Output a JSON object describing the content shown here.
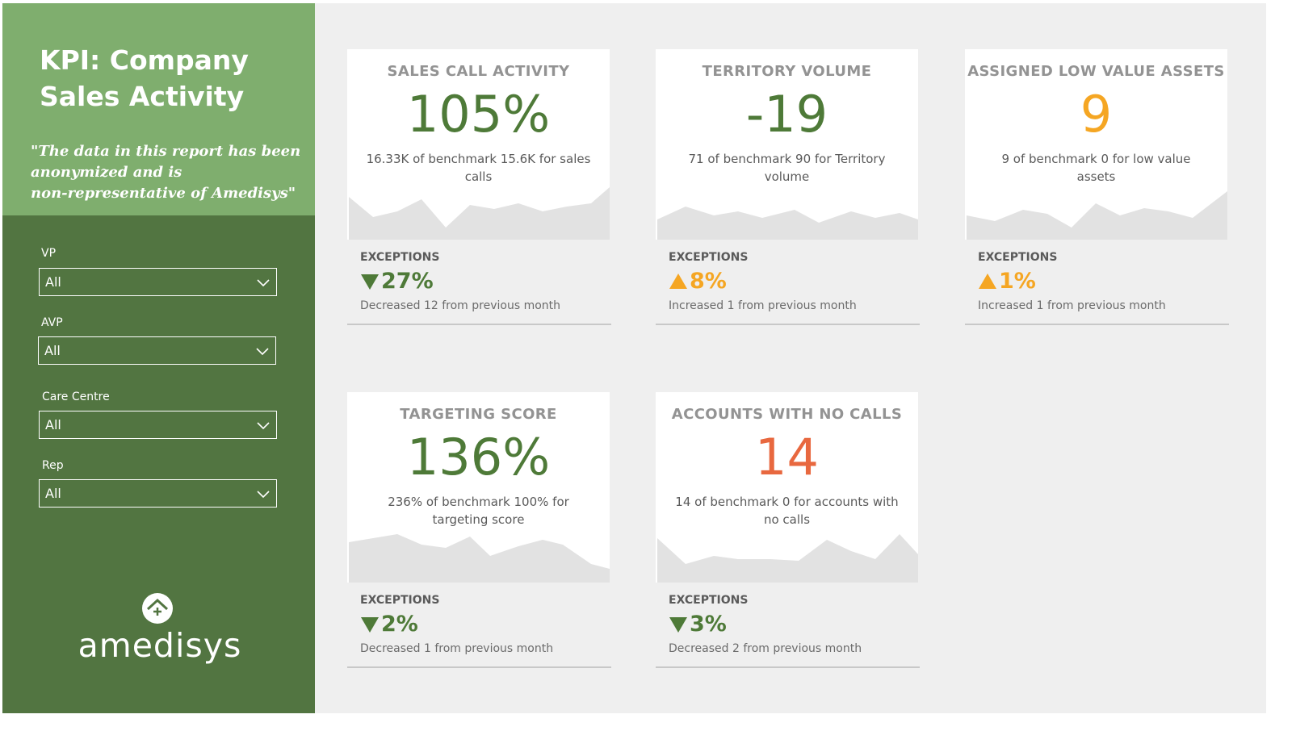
{
  "sidebar": {
    "title_line1": "KPI: Company",
    "title_line2": "Sales Activity",
    "quote_line1": "\"The data in this report has been",
    "quote_line2": "anonymized and is",
    "quote_line3": "non-representative of Amedisys\"",
    "filters": [
      {
        "label": "VP",
        "value": "All"
      },
      {
        "label": "AVP",
        "value": "All"
      },
      {
        "label": "Care Centre",
        "value": "All"
      },
      {
        "label": "Rep",
        "value": "All"
      }
    ],
    "logo_text": "amedisys"
  },
  "colors": {
    "green": "#4e7a38",
    "orange": "#f5a623",
    "red": "#e8683f",
    "sidebar_dark": "#527541",
    "sidebar_light": "#7fae6e"
  },
  "cards": [
    {
      "title": "SALES CALL ACTIVITY",
      "value": "105%",
      "value_color": "green",
      "desc": "16.33K of benchmark 15.6K for sales calls",
      "exceptions_label": "EXCEPTIONS",
      "exceptions_value": "27%",
      "exceptions_direction": "down",
      "exceptions_desc": "Decreased 12 from previous month"
    },
    {
      "title": "TERRITORY VOLUME",
      "value": "-19",
      "value_color": "green",
      "desc": "71 of benchmark 90 for Territory volume",
      "exceptions_label": "EXCEPTIONS",
      "exceptions_value": "8%",
      "exceptions_direction": "up",
      "exceptions_desc": "Increased 1 from previous month"
    },
    {
      "title": "ASSIGNED LOW VALUE ASSETS",
      "value": "9",
      "value_color": "orange",
      "desc": "9 of benchmark 0 for low value assets",
      "exceptions_label": "EXCEPTIONS",
      "exceptions_value": "1%",
      "exceptions_direction": "up",
      "exceptions_desc": "Increased 1 from previous month"
    },
    {
      "title": "TARGETING SCORE",
      "value": "136%",
      "value_color": "green",
      "desc": "236% of benchmark 100% for targeting score",
      "exceptions_label": "EXCEPTIONS",
      "exceptions_value": "2%",
      "exceptions_direction": "down",
      "exceptions_desc": "Decreased 1 from previous month"
    },
    {
      "title": "ACCOUNTS WITH NO CALLS",
      "value": "14",
      "value_color": "red",
      "desc": "14 of benchmark 0 for accounts with no calls",
      "exceptions_label": "EXCEPTIONS",
      "exceptions_value": "3%",
      "exceptions_direction": "down",
      "exceptions_desc": "Decreased 2 from previous month"
    }
  ]
}
